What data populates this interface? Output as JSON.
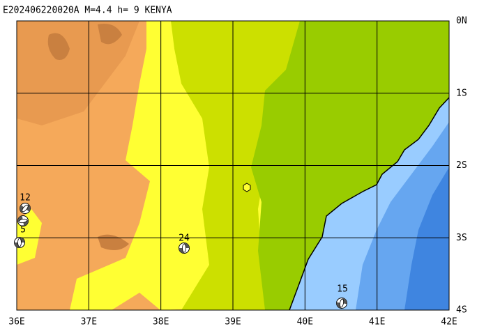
{
  "header": {
    "title": "E202406220020A  M=4.4  h=  9  KENYA"
  },
  "x_labels": [
    "36E",
    "37E",
    "38E",
    "39E",
    "40E",
    "41E",
    "42E"
  ],
  "y_labels": [
    "0N",
    "1S",
    "2S",
    "3S",
    "4S"
  ],
  "stations": [
    {
      "label": "12"
    },
    {
      "label": "5"
    },
    {
      "label": "24"
    },
    {
      "label": "15"
    }
  ]
}
